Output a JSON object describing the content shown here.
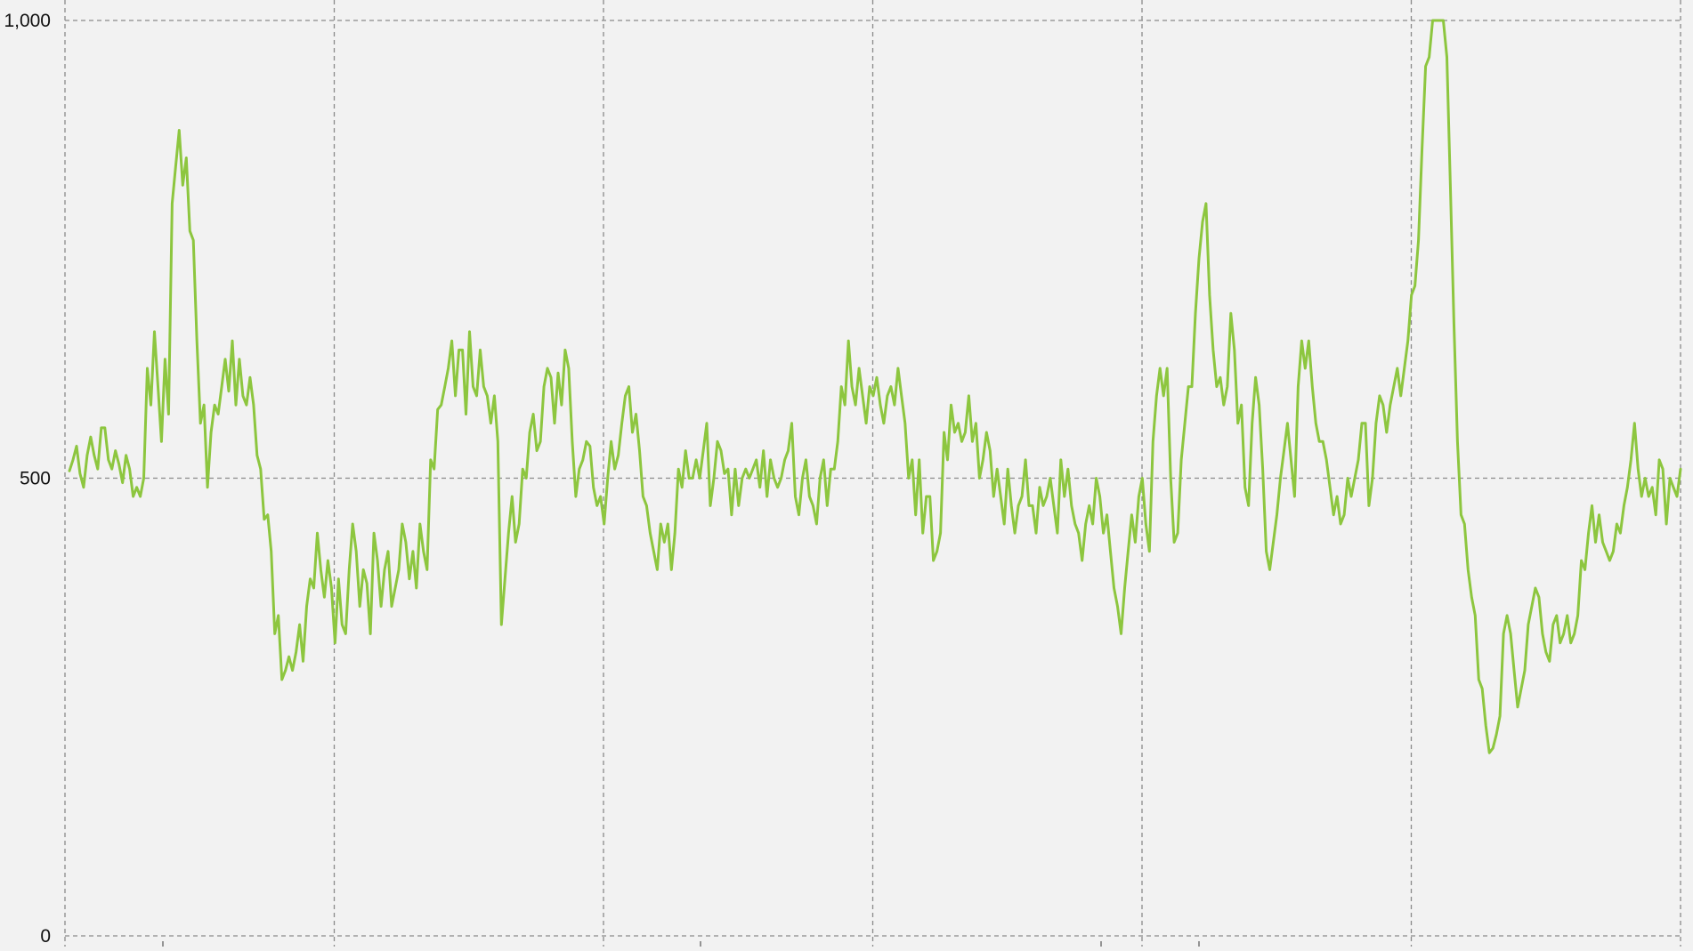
{
  "chart_data": {
    "type": "line",
    "title": "",
    "xlabel": "",
    "ylabel": "",
    "ylim": [
      0,
      1000
    ],
    "yticks": [
      {
        "value": 1000,
        "label": "1,000"
      },
      {
        "value": 500,
        "label": "500"
      },
      {
        "value": 0,
        "label": "0"
      }
    ],
    "x_gridlines": 7,
    "grid": true,
    "legend": "none",
    "colors": {
      "background": "#f2f2f2",
      "grid": "#8a8a8a",
      "series": "#8dc63f"
    },
    "series": [
      {
        "values": [
          508,
          520,
          535,
          505,
          490,
          525,
          545,
          525,
          510,
          555,
          555,
          520,
          510,
          530,
          515,
          495,
          525,
          510,
          480,
          490,
          480,
          500,
          620,
          580,
          660,
          600,
          540,
          630,
          570,
          800,
          840,
          880,
          820,
          850,
          770,
          760,
          650,
          560,
          580,
          490,
          550,
          580,
          570,
          600,
          630,
          595,
          650,
          580,
          630,
          590,
          580,
          610,
          580,
          525,
          510,
          455,
          460,
          420,
          330,
          350,
          280,
          290,
          305,
          290,
          310,
          340,
          300,
          360,
          390,
          380,
          440,
          400,
          370,
          410,
          380,
          320,
          390,
          340,
          330,
          400,
          450,
          420,
          360,
          400,
          385,
          330,
          440,
          410,
          360,
          400,
          420,
          360,
          380,
          400,
          450,
          430,
          390,
          420,
          380,
          450,
          420,
          400,
          520,
          510,
          575,
          580,
          600,
          620,
          650,
          590,
          640,
          640,
          570,
          660,
          600,
          590,
          640,
          600,
          590,
          560,
          590,
          540,
          340,
          390,
          440,
          480,
          430,
          450,
          510,
          500,
          550,
          570,
          530,
          540,
          600,
          620,
          610,
          560,
          615,
          580,
          640,
          620,
          540,
          480,
          510,
          520,
          540,
          535,
          490,
          470,
          480,
          450,
          500,
          540,
          510,
          525,
          560,
          590,
          600,
          550,
          570,
          530,
          480,
          470,
          440,
          420,
          400,
          450,
          430,
          450,
          400,
          440,
          510,
          490,
          530,
          500,
          500,
          520,
          500,
          530,
          560,
          470,
          500,
          540,
          530,
          505,
          510,
          460,
          510,
          470,
          500,
          510,
          500,
          510,
          520,
          490,
          530,
          480,
          520,
          500,
          490,
          500,
          520,
          530,
          560,
          480,
          460,
          500,
          520,
          480,
          470,
          450,
          500,
          520,
          470,
          510,
          510,
          540,
          600,
          580,
          650,
          600,
          580,
          620,
          590,
          560,
          600,
          590,
          610,
          580,
          560,
          590,
          600,
          580,
          620,
          590,
          560,
          500,
          520,
          460,
          520,
          440,
          480,
          480,
          410,
          420,
          440,
          550,
          520,
          580,
          550,
          560,
          540,
          550,
          590,
          540,
          560,
          500,
          520,
          550,
          530,
          480,
          510,
          480,
          450,
          510,
          470,
          440,
          470,
          480,
          520,
          470,
          470,
          440,
          490,
          470,
          480,
          500,
          470,
          440,
          520,
          480,
          510,
          470,
          450,
          440,
          410,
          450,
          470,
          450,
          500,
          480,
          440,
          460,
          420,
          380,
          360,
          330,
          380,
          420,
          460,
          430,
          480,
          500,
          450,
          420,
          540,
          590,
          620,
          590,
          620,
          500,
          430,
          440,
          520,
          560,
          600,
          600,
          680,
          740,
          780,
          800,
          700,
          640,
          600,
          610,
          580,
          600,
          680,
          640,
          560,
          580,
          490,
          470,
          560,
          610,
          580,
          510,
          420,
          400,
          430,
          460,
          500,
          530,
          560,
          520,
          480,
          600,
          650,
          620,
          650,
          600,
          560,
          540,
          540,
          520,
          490,
          460,
          480,
          450,
          460,
          500,
          480,
          500,
          520,
          560,
          560,
          470,
          500,
          560,
          590,
          580,
          550,
          580,
          600,
          620,
          590,
          620,
          650,
          700,
          710,
          760,
          860,
          950,
          960,
          1000,
          1000,
          1000,
          1000,
          960,
          820,
          670,
          540,
          460,
          450,
          400,
          370,
          350,
          280,
          270,
          230,
          200,
          205,
          220,
          240,
          330,
          350,
          330,
          290,
          250,
          270,
          290,
          340,
          360,
          380,
          370,
          330,
          310,
          300,
          340,
          350,
          320,
          330,
          350,
          320,
          330,
          350,
          410,
          400,
          440,
          470,
          430,
          460,
          430,
          420,
          410,
          420,
          450,
          440,
          470,
          490,
          520,
          560,
          510,
          480,
          500,
          480,
          490,
          460,
          520,
          510,
          450,
          500,
          490,
          480,
          510
        ]
      }
    ]
  }
}
